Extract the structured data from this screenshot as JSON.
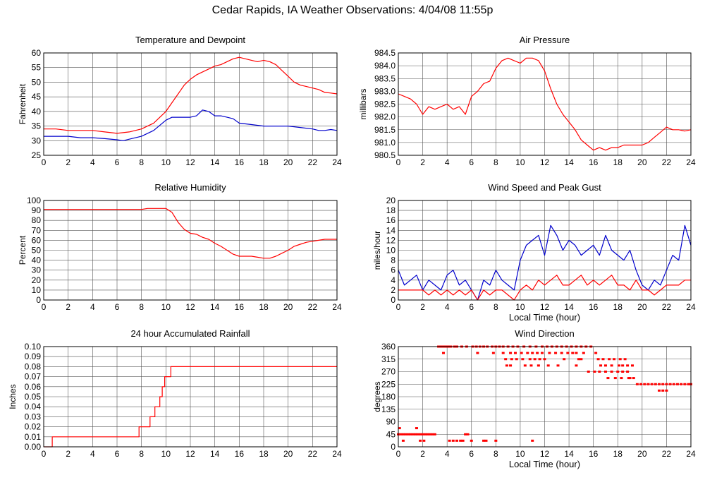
{
  "title": "Cedar Rapids, IA Weather Observations: 4/04/08 11:55p",
  "colors": {
    "red": "#ff0000",
    "blue": "#0000cc",
    "grid": "#555555",
    "frame": "#000000"
  },
  "chart_data": [
    {
      "id": "temperature",
      "type": "line",
      "title": "Temperature and Dewpoint",
      "xlabel": "",
      "ylabel": "Fahrenheit",
      "xlim": [
        0,
        24
      ],
      "ylim": [
        25,
        60
      ],
      "x_ticks": [
        "0",
        "2",
        "4",
        "6",
        "8",
        "10",
        "12",
        "14",
        "16",
        "18",
        "20",
        "22",
        "24"
      ],
      "y_ticks": [
        "25",
        "30",
        "35",
        "40",
        "45",
        "50",
        "55",
        "60"
      ],
      "grid": true,
      "series": [
        {
          "color": "red",
          "x": [
            0,
            1,
            2,
            3,
            4,
            5,
            6,
            7,
            8,
            9,
            10,
            10.5,
            11,
            11.5,
            12,
            12.5,
            13,
            13.5,
            14,
            14.5,
            15,
            15.5,
            16,
            16.5,
            17,
            17.5,
            18,
            18.5,
            19,
            19.5,
            20,
            20.5,
            21,
            21.5,
            22,
            22.5,
            23,
            23.5,
            24
          ],
          "y": [
            34,
            34,
            33.5,
            33.5,
            33.5,
            33,
            32.5,
            33,
            34,
            36,
            40,
            43,
            46,
            49,
            51,
            52.5,
            53.5,
            54.5,
            55.5,
            56,
            57,
            58,
            58.5,
            58,
            57.5,
            57,
            57.5,
            57,
            56,
            54,
            52,
            50,
            49,
            48.5,
            48,
            47.5,
            46.5,
            46.3,
            46
          ]
        },
        {
          "color": "blue",
          "x": [
            0,
            1,
            2,
            3,
            4,
            5,
            6,
            6.5,
            7,
            8,
            9,
            10,
            10.5,
            11,
            12,
            12.5,
            13,
            13.5,
            14,
            14.5,
            15,
            15.5,
            16,
            17,
            18,
            19,
            20,
            21,
            22,
            22.5,
            23,
            23.5,
            24
          ],
          "y": [
            31.5,
            31.5,
            31.5,
            31,
            31,
            30.7,
            30.3,
            30,
            30.5,
            31.5,
            33.5,
            37,
            38,
            38,
            38,
            38.5,
            40.5,
            40,
            38.5,
            38.5,
            38,
            37.5,
            36,
            35.5,
            35,
            35,
            35,
            34.5,
            34,
            33.5,
            33.5,
            33.8,
            33.5
          ]
        }
      ]
    },
    {
      "id": "pressure",
      "type": "line",
      "title": "Air Pressure",
      "xlabel": "",
      "ylabel": "millibars",
      "xlim": [
        0,
        24
      ],
      "ylim": [
        980.5,
        984.5
      ],
      "x_ticks": [
        "0",
        "2",
        "4",
        "6",
        "8",
        "10",
        "12",
        "14",
        "16",
        "18",
        "20",
        "22",
        "24"
      ],
      "y_ticks": [
        "980.5",
        "981.0",
        "981.5",
        "982.0",
        "982.5",
        "983.0",
        "983.5",
        "984.0",
        "984.5"
      ],
      "grid": true,
      "series": [
        {
          "color": "red",
          "x": [
            0,
            0.5,
            1,
            1.5,
            2,
            2.5,
            3,
            3.5,
            4,
            4.5,
            5,
            5.5,
            6,
            6.5,
            7,
            7.5,
            8,
            8.5,
            9,
            9.5,
            10,
            10.5,
            11,
            11.5,
            12,
            12.5,
            13,
            13.5,
            14,
            14.5,
            15,
            15.5,
            16,
            16.5,
            17,
            17.5,
            18,
            18.5,
            19,
            19.5,
            20,
            20.5,
            21,
            21.5,
            22,
            22.5,
            23,
            23.5,
            24
          ],
          "y": [
            982.9,
            982.8,
            982.7,
            982.5,
            982.1,
            982.4,
            982.3,
            982.4,
            982.5,
            982.3,
            982.4,
            982.1,
            982.8,
            983.0,
            983.3,
            983.4,
            983.9,
            984.2,
            984.3,
            984.2,
            984.1,
            984.3,
            984.3,
            984.2,
            983.8,
            983.1,
            982.5,
            982.1,
            981.8,
            981.5,
            981.1,
            980.9,
            980.7,
            980.8,
            980.7,
            980.8,
            980.8,
            980.9,
            980.9,
            980.9,
            980.9,
            981.0,
            981.2,
            981.4,
            981.6,
            981.5,
            981.5,
            981.45,
            981.5
          ]
        }
      ]
    },
    {
      "id": "humidity",
      "type": "line",
      "title": "Relative Humidity",
      "xlabel": "",
      "ylabel": "Percent",
      "xlim": [
        0,
        24
      ],
      "ylim": [
        0,
        100
      ],
      "x_ticks": [
        "0",
        "2",
        "4",
        "6",
        "8",
        "10",
        "12",
        "14",
        "16",
        "18",
        "20",
        "22",
        "24"
      ],
      "y_ticks": [
        "0",
        "10",
        "20",
        "30",
        "40",
        "50",
        "60",
        "70",
        "80",
        "90",
        "100"
      ],
      "grid": true,
      "series": [
        {
          "color": "red",
          "x": [
            0,
            2,
            4,
            6,
            8,
            8.5,
            9,
            9.5,
            10,
            10.5,
            11,
            11.5,
            12,
            12.5,
            13,
            13.5,
            14,
            14.5,
            15,
            15.5,
            16,
            16.5,
            17,
            17.5,
            18,
            18.5,
            19,
            19.5,
            20,
            20.5,
            21,
            21.5,
            22,
            22.5,
            23,
            23.5,
            24
          ],
          "y": [
            91,
            91,
            91,
            91,
            91,
            92,
            92,
            92,
            92,
            88,
            78,
            71,
            67,
            66,
            63,
            61,
            57,
            54,
            50,
            46,
            44,
            44,
            44,
            43,
            42,
            42,
            44,
            47,
            50,
            54,
            56,
            58,
            59,
            60,
            61,
            61,
            61
          ]
        }
      ]
    },
    {
      "id": "wind-speed",
      "type": "line",
      "title": "Wind Speed and Peak Gust",
      "xlabel": "Local Time (hour)",
      "ylabel": "miles/hour",
      "xlim": [
        0,
        24
      ],
      "ylim": [
        0,
        20
      ],
      "x_ticks": [
        "0",
        "2",
        "4",
        "6",
        "8",
        "10",
        "12",
        "14",
        "16",
        "18",
        "20",
        "22",
        "24"
      ],
      "y_ticks": [
        "0",
        "2",
        "4",
        "6",
        "8",
        "10",
        "12",
        "14",
        "16",
        "18",
        "20"
      ],
      "grid": true,
      "series": [
        {
          "color": "blue",
          "x": [
            0,
            0.5,
            1,
            1.5,
            2,
            2.5,
            3,
            3.5,
            4,
            4.5,
            5,
            5.5,
            6,
            6.5,
            7,
            7.5,
            8,
            8.5,
            9,
            9.5,
            10,
            10.5,
            11,
            11.5,
            12,
            12.5,
            13,
            13.5,
            14,
            14.5,
            15,
            15.5,
            16,
            16.5,
            17,
            17.5,
            18,
            18.5,
            19,
            19.5,
            20,
            20.5,
            21,
            21.5,
            22,
            22.5,
            23,
            23.5,
            24
          ],
          "y": [
            6,
            3,
            4,
            5,
            2,
            4,
            3,
            2,
            5,
            6,
            3,
            4,
            2,
            0,
            4,
            3,
            6,
            4,
            3,
            2,
            8,
            11,
            12,
            13,
            9,
            15,
            13,
            10,
            12,
            11,
            9,
            10,
            11,
            9,
            13,
            10,
            9,
            8,
            10,
            6,
            3,
            2,
            4,
            3,
            6,
            9,
            8,
            15,
            11
          ]
        },
        {
          "color": "red",
          "x": [
            0,
            1,
            1.5,
            2,
            2.5,
            3,
            3.5,
            4,
            4.5,
            5,
            5.5,
            6,
            6.5,
            7,
            7.5,
            8,
            8.5,
            9,
            9.5,
            10,
            10.5,
            11,
            11.5,
            12,
            12.5,
            13,
            13.5,
            14,
            14.5,
            15,
            15.5,
            16,
            16.5,
            17,
            17.5,
            18,
            18.5,
            19,
            19.5,
            20,
            20.5,
            21,
            21.5,
            22,
            22.5,
            23,
            23.5,
            24
          ],
          "y": [
            2,
            2,
            2,
            2,
            1,
            2,
            1,
            2,
            1,
            2,
            1,
            2,
            0,
            2,
            1,
            2,
            2,
            1,
            0,
            2,
            3,
            2,
            4,
            3,
            4,
            5,
            3,
            3,
            4,
            5,
            3,
            4,
            3,
            4,
            5,
            3,
            3,
            2,
            4,
            2,
            2,
            1,
            2,
            3,
            3,
            3,
            4,
            4
          ]
        }
      ]
    },
    {
      "id": "rainfall",
      "type": "line",
      "title": "24 hour Accumulated Rainfall",
      "xlabel": "",
      "ylabel": "Inches",
      "xlim": [
        0,
        24
      ],
      "ylim": [
        0,
        0.1
      ],
      "x_ticks": [
        "0",
        "2",
        "4",
        "6",
        "8",
        "10",
        "12",
        "14",
        "16",
        "18",
        "20",
        "22",
        "24"
      ],
      "y_ticks": [
        "0.00",
        "0.01",
        "0.02",
        "0.03",
        "0.04",
        "0.05",
        "0.06",
        "0.07",
        "0.08",
        "0.09",
        "0.10"
      ],
      "grid": true,
      "step": true,
      "series": [
        {
          "color": "red",
          "x": [
            0,
            0.6,
            0.7,
            7.6,
            7.8,
            8.5,
            8.7,
            8.9,
            9.1,
            9.3,
            9.5,
            9.7,
            9.9,
            10.1,
            10.4,
            24
          ],
          "y": [
            0,
            0,
            0.01,
            0.01,
            0.02,
            0.02,
            0.03,
            0.03,
            0.04,
            0.04,
            0.05,
            0.06,
            0.07,
            0.07,
            0.08,
            0.08
          ]
        }
      ]
    },
    {
      "id": "wind-direction",
      "type": "scatter",
      "title": "Wind Direction",
      "xlabel": "Local Time (hour)",
      "ylabel": "degrees",
      "xlim": [
        0,
        24
      ],
      "ylim": [
        0,
        360
      ],
      "x_ticks": [
        "0",
        "2",
        "4",
        "6",
        "8",
        "10",
        "12",
        "14",
        "16",
        "18",
        "20",
        "22",
        "24"
      ],
      "y_ticks": [
        "0",
        "45",
        "90",
        "135",
        "180",
        "225",
        "270",
        "315",
        "360"
      ],
      "grid": true,
      "series": [
        {
          "color": "red",
          "x": [
            0,
            0.2,
            0.4,
            0.6,
            0.8,
            1,
            1.2,
            1.4,
            1.6,
            1.8,
            2,
            2.2,
            2.4,
            2.6,
            2.8,
            3,
            0.1,
            0.4,
            1.5,
            1.8,
            2.1,
            4.2,
            4.5,
            4.8,
            5.1,
            5.3,
            5.5,
            5.7,
            6.0,
            7.0,
            7.2,
            8,
            11,
            3.3,
            3.5,
            3.7,
            3.9,
            4.1,
            4.3,
            4.6,
            4.8,
            5.2,
            5.6,
            6.1,
            6.4,
            6.7,
            7.0,
            7.3,
            7.7,
            8.0,
            8.3,
            8.6,
            9.0,
            9.4,
            9.8,
            10.3,
            10.8,
            11.3,
            11.8,
            12.2,
            12.6,
            13.0,
            13.4,
            13.8,
            14.2,
            14.6,
            15.0,
            15.4,
            15.8,
            3.7,
            6.5,
            7.8,
            8.6,
            9.2,
            9.6,
            10.1,
            10.6,
            11.0,
            11.4,
            11.8,
            12.4,
            12.9,
            13.4,
            13.9,
            14.3,
            14.6,
            15.2,
            16.2,
            8.8,
            9.3,
            9.7,
            10.2,
            10.8,
            11.2,
            11.6,
            12.0,
            13.6,
            14.8,
            15.0,
            16.4,
            16.8,
            17.3,
            17.7,
            18.2,
            18.6,
            8.9,
            9.2,
            10.4,
            10.9,
            11.5,
            12.3,
            13.1,
            14.6,
            16.6,
            17.0,
            17.5,
            18.1,
            18.4,
            18.8,
            19.2,
            15.6,
            16.1,
            16.5,
            17.0,
            17.5,
            18.0,
            18.4,
            18.8,
            19.0,
            19.3,
            19.6,
            19.9,
            20.2,
            20.5,
            20.8,
            21.1,
            21.4,
            21.7,
            22.0,
            22.3,
            22.6,
            22.9,
            23.2,
            23.5,
            23.8,
            24,
            17.2,
            17.8,
            18.3,
            18.9,
            21.4,
            21.7,
            22.0
          ],
          "y": [
            45,
            45,
            45,
            45,
            45,
            45,
            45,
            45,
            45,
            45,
            45,
            45,
            45,
            45,
            45,
            45,
            67,
            22,
            67,
            22,
            22,
            22,
            22,
            22,
            22,
            22,
            45,
            45,
            22,
            22,
            22,
            22,
            22,
            360,
            360,
            360,
            360,
            360,
            360,
            360,
            360,
            360,
            360,
            360,
            360,
            360,
            360,
            360,
            360,
            360,
            360,
            360,
            360,
            360,
            360,
            360,
            360,
            360,
            360,
            360,
            360,
            360,
            360,
            360,
            360,
            360,
            360,
            360,
            360,
            337,
            337,
            337,
            337,
            337,
            337,
            337,
            337,
            337,
            337,
            337,
            337,
            337,
            337,
            337,
            337,
            337,
            337,
            337,
            315,
            315,
            315,
            315,
            315,
            315,
            315,
            315,
            315,
            315,
            315,
            315,
            315,
            315,
            315,
            315,
            315,
            292,
            292,
            292,
            292,
            292,
            292,
            292,
            292,
            292,
            292,
            292,
            292,
            292,
            292,
            292,
            270,
            270,
            270,
            270,
            270,
            270,
            270,
            270,
            247,
            247,
            225,
            225,
            225,
            225,
            225,
            225,
            225,
            225,
            225,
            225,
            225,
            225,
            225,
            225,
            225,
            225,
            247,
            247,
            247,
            247,
            202,
            202,
            202
          ]
        }
      ]
    }
  ]
}
